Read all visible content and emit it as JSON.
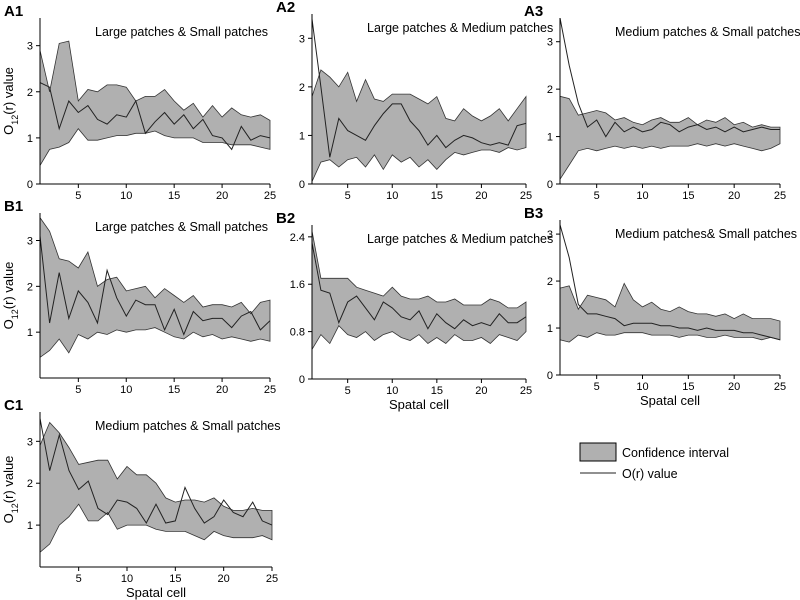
{
  "figure": {
    "legend": {
      "ci_label": "Confidence interval",
      "line_label": "O(r) value",
      "ci_color": "#b0b0b0",
      "line_color": "#222222"
    }
  },
  "chart_data": [
    {
      "id": "A1",
      "type": "area",
      "label": "A1",
      "title": "Large patches & Small patches",
      "xlabel": "",
      "ylabel": "O12(r) value",
      "xlim": [
        1,
        25
      ],
      "ylim": [
        0,
        3.6
      ],
      "xticks": [
        5,
        10,
        15,
        20,
        25
      ],
      "yticks": [
        0,
        1,
        2,
        3
      ],
      "x": [
        1,
        2,
        3,
        4,
        5,
        6,
        7,
        8,
        9,
        10,
        11,
        12,
        13,
        14,
        15,
        16,
        17,
        18,
        19,
        20,
        21,
        22,
        23,
        24,
        25
      ],
      "upper": [
        2.9,
        2.0,
        3.05,
        3.1,
        1.8,
        2.05,
        2.0,
        2.15,
        2.15,
        2.1,
        1.8,
        1.9,
        1.9,
        2.05,
        1.8,
        1.6,
        1.75,
        1.45,
        1.7,
        1.45,
        1.65,
        1.5,
        1.45,
        1.5,
        1.38
      ],
      "lower": [
        0.4,
        0.75,
        0.8,
        0.9,
        1.2,
        0.95,
        0.95,
        1.0,
        1.05,
        1.05,
        1.1,
        1.1,
        1.15,
        1.05,
        1.0,
        1.0,
        1.0,
        0.9,
        0.9,
        0.9,
        0.85,
        0.85,
        0.85,
        0.8,
        0.75
      ],
      "observed": [
        2.2,
        2.1,
        1.2,
        1.8,
        1.55,
        1.7,
        1.4,
        1.3,
        1.5,
        1.45,
        1.8,
        1.1,
        1.35,
        1.55,
        1.3,
        1.5,
        1.2,
        1.4,
        1.05,
        1.0,
        0.75,
        1.25,
        0.95,
        1.05,
        1.0
      ]
    },
    {
      "id": "A2",
      "type": "area",
      "label": "A2",
      "title": "Large patches & Medium patches",
      "xlabel": "",
      "ylabel": "",
      "xlim": [
        1,
        25
      ],
      "ylim": [
        0,
        3.5
      ],
      "xticks": [
        5,
        10,
        15,
        20,
        25
      ],
      "yticks": [
        0,
        1,
        2,
        3
      ],
      "x": [
        1,
        2,
        3,
        4,
        5,
        6,
        7,
        8,
        9,
        10,
        11,
        12,
        13,
        14,
        15,
        16,
        17,
        18,
        19,
        20,
        21,
        22,
        23,
        24,
        25
      ],
      "upper": [
        1.8,
        2.35,
        2.2,
        2.0,
        2.3,
        1.7,
        2.15,
        1.75,
        1.7,
        1.85,
        1.85,
        1.85,
        1.75,
        1.65,
        1.8,
        1.35,
        1.3,
        1.55,
        1.4,
        1.3,
        1.4,
        1.55,
        1.3,
        1.55,
        1.8
      ],
      "lower": [
        0.05,
        0.45,
        0.5,
        0.35,
        0.5,
        0.55,
        0.35,
        0.6,
        0.3,
        0.6,
        0.45,
        0.55,
        0.35,
        0.5,
        0.3,
        0.5,
        0.65,
        0.6,
        0.65,
        0.7,
        0.7,
        0.65,
        0.75,
        0.7,
        0.75
      ],
      "observed": [
        3.4,
        2.0,
        0.55,
        1.35,
        1.1,
        1.0,
        0.9,
        1.2,
        1.45,
        1.65,
        1.65,
        1.3,
        1.1,
        0.8,
        1.0,
        0.75,
        0.9,
        1.0,
        0.95,
        0.85,
        0.8,
        0.85,
        0.8,
        1.2,
        1.25
      ]
    },
    {
      "id": "A3",
      "type": "area",
      "label": "A3",
      "title": "Medium patches & Small patches",
      "xlabel": "",
      "ylabel": "",
      "xlim": [
        1,
        25
      ],
      "ylim": [
        0,
        3.5
      ],
      "xticks": [
        5,
        10,
        15,
        20,
        25
      ],
      "yticks": [
        0,
        1,
        2,
        3
      ],
      "x": [
        1,
        2,
        3,
        4,
        5,
        6,
        7,
        8,
        9,
        10,
        11,
        12,
        13,
        14,
        15,
        16,
        17,
        18,
        19,
        20,
        21,
        22,
        23,
        24,
        25
      ],
      "upper": [
        1.85,
        1.8,
        1.45,
        1.5,
        1.55,
        1.5,
        1.35,
        1.4,
        1.3,
        1.25,
        1.35,
        1.4,
        1.3,
        1.3,
        1.4,
        1.25,
        1.35,
        1.3,
        1.4,
        1.25,
        1.3,
        1.2,
        1.25,
        1.2,
        1.2
      ],
      "lower": [
        0.1,
        0.4,
        0.7,
        0.75,
        0.7,
        0.75,
        0.8,
        0.75,
        0.8,
        0.75,
        0.8,
        0.75,
        0.8,
        0.8,
        0.8,
        0.85,
        0.8,
        0.85,
        0.8,
        0.85,
        0.8,
        0.75,
        0.7,
        0.75,
        0.85
      ],
      "observed": [
        3.5,
        2.5,
        1.7,
        1.2,
        1.35,
        1.0,
        1.3,
        1.1,
        1.2,
        1.1,
        1.15,
        1.3,
        1.25,
        1.1,
        1.2,
        1.25,
        1.15,
        1.2,
        1.1,
        1.2,
        1.1,
        1.15,
        1.2,
        1.15,
        1.15
      ]
    },
    {
      "id": "B1",
      "type": "area",
      "label": "B1",
      "title": "Large patches & Small patches",
      "xlabel": "",
      "ylabel": "O12(r) value",
      "xlim": [
        1,
        25
      ],
      "ylim": [
        0,
        3.6
      ],
      "xticks": [
        5,
        10,
        15,
        20,
        25
      ],
      "yticks": [
        1,
        2,
        3
      ],
      "x": [
        1,
        2,
        3,
        4,
        5,
        6,
        7,
        8,
        9,
        10,
        11,
        12,
        13,
        14,
        15,
        16,
        17,
        18,
        19,
        20,
        21,
        22,
        23,
        24,
        25
      ],
      "upper": [
        3.5,
        3.2,
        2.6,
        2.55,
        2.4,
        2.75,
        2.0,
        2.15,
        2.2,
        1.9,
        1.95,
        2.0,
        1.75,
        1.95,
        1.8,
        1.65,
        1.8,
        1.55,
        1.6,
        1.6,
        1.55,
        1.65,
        1.4,
        1.65,
        1.7
      ],
      "lower": [
        0.45,
        0.6,
        0.85,
        0.55,
        0.95,
        0.85,
        1.0,
        0.95,
        1.05,
        1.0,
        1.05,
        1.05,
        1.1,
        1.0,
        0.9,
        0.85,
        1.0,
        0.9,
        0.95,
        0.85,
        0.9,
        0.85,
        0.8,
        0.85,
        0.8
      ],
      "observed": [
        3.1,
        1.2,
        2.3,
        1.3,
        1.9,
        1.65,
        1.2,
        2.35,
        1.75,
        1.35,
        1.7,
        1.6,
        1.6,
        1.05,
        1.5,
        0.95,
        1.45,
        1.25,
        1.3,
        1.3,
        1.1,
        1.35,
        1.45,
        1.05,
        1.25
      ]
    },
    {
      "id": "B2",
      "type": "area",
      "label": "B2",
      "title": "Large patches & Medium patches",
      "xlabel": "Spatal cell",
      "ylabel": "",
      "xlim": [
        1,
        25
      ],
      "ylim": [
        0,
        2.6
      ],
      "xticks": [
        5,
        10,
        15,
        20,
        25
      ],
      "yticks": [
        0,
        0.8,
        1.6,
        2.4
      ],
      "x": [
        1,
        2,
        3,
        4,
        5,
        6,
        7,
        8,
        9,
        10,
        11,
        12,
        13,
        14,
        15,
        16,
        17,
        18,
        19,
        20,
        21,
        22,
        23,
        24,
        25
      ],
      "upper": [
        2.5,
        1.7,
        1.7,
        1.7,
        1.7,
        1.55,
        1.5,
        1.45,
        1.4,
        1.55,
        1.4,
        1.35,
        1.35,
        1.4,
        1.3,
        1.3,
        1.35,
        1.25,
        1.25,
        1.25,
        1.35,
        1.3,
        1.2,
        1.2,
        1.3
      ],
      "lower": [
        0.5,
        0.75,
        0.6,
        0.9,
        0.75,
        0.7,
        0.8,
        0.65,
        0.75,
        0.8,
        0.7,
        0.65,
        0.75,
        0.6,
        0.7,
        0.6,
        0.75,
        0.65,
        0.65,
        0.7,
        0.6,
        0.75,
        0.7,
        0.65,
        0.8
      ],
      "observed": [
        2.3,
        1.5,
        1.45,
        0.95,
        1.3,
        1.4,
        1.2,
        1.0,
        1.3,
        1.2,
        1.05,
        1.0,
        1.15,
        0.85,
        1.1,
        0.95,
        0.85,
        1.0,
        0.9,
        0.95,
        0.9,
        1.1,
        0.95,
        0.95,
        1.05
      ]
    },
    {
      "id": "B3",
      "type": "area",
      "label": "B3",
      "title": "Medium patches& Small patches",
      "xlabel": "Spatal cell",
      "ylabel": "",
      "xlim": [
        1,
        25
      ],
      "ylim": [
        0,
        3.3
      ],
      "xticks": [
        5,
        10,
        15,
        20,
        25
      ],
      "yticks": [
        0,
        1,
        2,
        3
      ],
      "x": [
        1,
        2,
        3,
        4,
        5,
        6,
        7,
        8,
        9,
        10,
        11,
        12,
        13,
        14,
        15,
        16,
        17,
        18,
        19,
        20,
        21,
        22,
        23,
        24,
        25
      ],
      "upper": [
        1.85,
        1.9,
        1.4,
        1.7,
        1.65,
        1.6,
        1.45,
        1.95,
        1.6,
        1.45,
        1.55,
        1.4,
        1.35,
        1.45,
        1.35,
        1.3,
        1.3,
        1.25,
        1.3,
        1.2,
        1.3,
        1.2,
        1.2,
        1.2,
        1.15
      ],
      "lower": [
        0.75,
        0.7,
        0.85,
        0.8,
        0.9,
        0.85,
        0.85,
        0.9,
        0.9,
        0.9,
        0.85,
        0.85,
        0.85,
        0.8,
        0.85,
        0.85,
        0.8,
        0.8,
        0.85,
        0.8,
        0.8,
        0.8,
        0.75,
        0.8,
        0.75
      ],
      "observed": [
        3.2,
        2.5,
        1.5,
        1.3,
        1.3,
        1.25,
        1.2,
        1.05,
        1.1,
        1.1,
        1.1,
        1.05,
        1.05,
        1.0,
        1.0,
        0.95,
        1.0,
        0.95,
        0.95,
        0.95,
        0.9,
        0.9,
        0.85,
        0.8,
        0.75
      ]
    },
    {
      "id": "C1",
      "type": "area",
      "label": "C1",
      "title": "Medium patches & Small patches",
      "xlabel": "Spatal cell",
      "ylabel": "O12(r) value",
      "xlim": [
        1,
        25
      ],
      "ylim": [
        0,
        3.7
      ],
      "xticks": [
        5,
        10,
        15,
        20,
        25
      ],
      "yticks": [
        1,
        2,
        3
      ],
      "x": [
        1,
        2,
        3,
        4,
        5,
        6,
        7,
        8,
        9,
        10,
        11,
        12,
        13,
        14,
        15,
        16,
        17,
        18,
        19,
        20,
        21,
        22,
        23,
        24,
        25
      ],
      "upper": [
        2.9,
        3.45,
        3.2,
        2.85,
        2.45,
        2.5,
        2.55,
        2.55,
        2.1,
        2.4,
        2.2,
        2.2,
        2.0,
        1.65,
        1.55,
        1.6,
        1.6,
        1.55,
        1.65,
        1.45,
        1.35,
        1.35,
        1.4,
        1.35,
        1.35
      ],
      "lower": [
        0.35,
        0.55,
        1.0,
        1.2,
        1.5,
        1.1,
        1.1,
        1.3,
        0.9,
        1.0,
        1.0,
        1.0,
        0.9,
        0.85,
        0.85,
        0.85,
        0.75,
        0.65,
        0.85,
        0.75,
        0.7,
        0.7,
        0.7,
        0.75,
        0.65
      ],
      "observed": [
        3.55,
        2.3,
        3.15,
        2.3,
        1.85,
        2.05,
        1.4,
        1.25,
        1.6,
        1.55,
        1.4,
        1.05,
        1.5,
        1.05,
        1.1,
        1.9,
        1.4,
        1.05,
        1.2,
        1.6,
        1.3,
        1.2,
        1.55,
        1.1,
        1.0
      ]
    }
  ]
}
